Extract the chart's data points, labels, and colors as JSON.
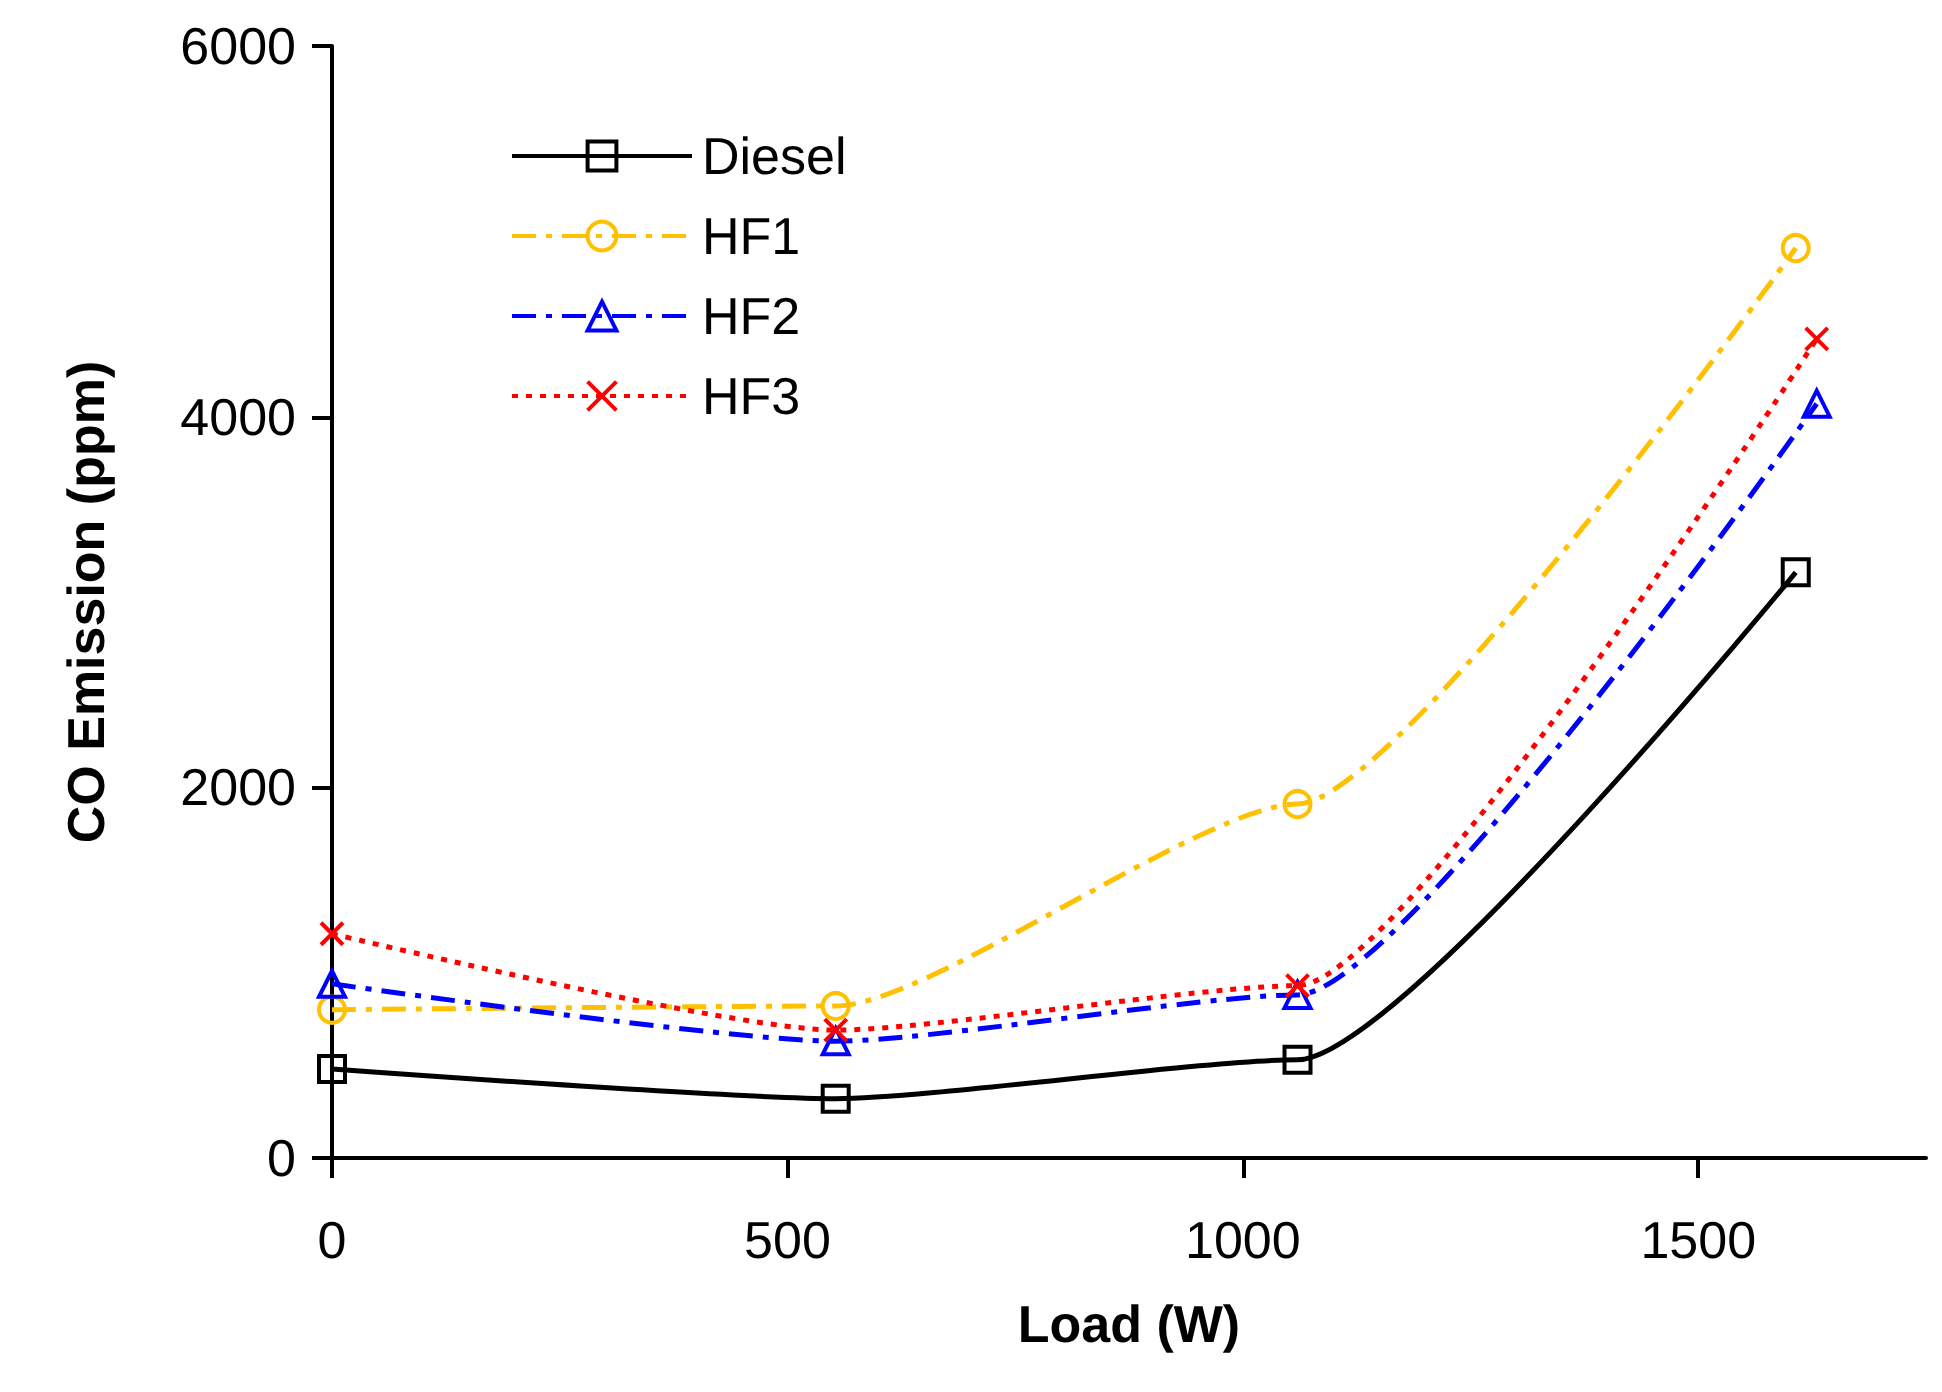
{
  "chart_data": {
    "type": "line",
    "xlabel": "Load (W)",
    "ylabel": "CO Emission (ppm)",
    "xlim": [
      0,
      1750
    ],
    "xticks": [
      0,
      500,
      1000,
      1500
    ],
    "ylim": [
      0,
      6000
    ],
    "yticks": [
      0,
      2000,
      4000,
      6000
    ],
    "grid": false,
    "legend": "top left",
    "series": [
      {
        "name": "Diesel",
        "color": "#000000",
        "marker": "square",
        "line_style": "solid",
        "x": [
          0,
          553,
          1060,
          1607
        ],
        "values": [
          480,
          320,
          530,
          3160
        ]
      },
      {
        "name": "HF1",
        "color": "#ffc000",
        "marker": "circle",
        "line_style": "dashed",
        "x": [
          0,
          553,
          1060,
          1607
        ],
        "values": [
          800,
          820,
          1910,
          4910
        ]
      },
      {
        "name": "HF2",
        "color": "#0000ff",
        "marker": "triangle",
        "line_style": "dashed",
        "x": [
          0,
          553,
          1060,
          1630
        ],
        "values": [
          940,
          630,
          880,
          4070
        ]
      },
      {
        "name": "HF3",
        "color": "#ff0000",
        "marker": "cross",
        "line_style": "dotted",
        "x": [
          0,
          553,
          1060,
          1630
        ],
        "values": [
          1210,
          690,
          930,
          4420
        ]
      }
    ]
  }
}
